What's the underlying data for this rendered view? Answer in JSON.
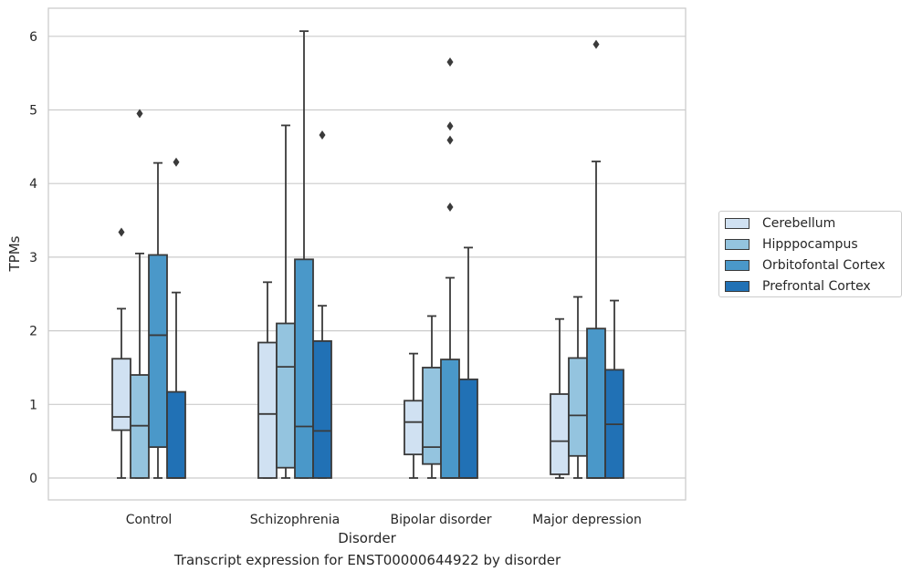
{
  "chart_data": {
    "type": "box",
    "title": "Transcript expression for ENST00000644922 by disorder",
    "xlabel": "Disorder",
    "ylabel": "TPMs",
    "ylim": [
      -0.3,
      6.4
    ],
    "yticks": [
      0,
      1,
      2,
      3,
      4,
      5,
      6
    ],
    "grid": true,
    "legend_position": "right",
    "categories": [
      "Control",
      "Schizophrenia",
      "Bipolar disorder",
      "Major depression"
    ],
    "series": [
      {
        "name": "Cerebellum",
        "color": "#d0e1f2",
        "boxes": [
          {
            "low": 0.0,
            "q1": 0.65,
            "median": 0.83,
            "q3": 1.62,
            "high": 2.3,
            "outliers": [
              3.34
            ]
          },
          {
            "low": 0.0,
            "q1": 0.0,
            "median": 0.87,
            "q3": 1.84,
            "high": 2.66,
            "outliers": []
          },
          {
            "low": 0.0,
            "q1": 0.32,
            "median": 0.76,
            "q3": 1.05,
            "high": 1.69,
            "outliers": []
          },
          {
            "low": 0.0,
            "q1": 0.05,
            "median": 0.5,
            "q3": 1.14,
            "high": 2.16,
            "outliers": []
          }
        ]
      },
      {
        "name": "Hipppocampus",
        "color": "#94c4df",
        "boxes": [
          {
            "low": 0.0,
            "q1": 0.0,
            "median": 0.71,
            "q3": 1.4,
            "high": 3.05,
            "outliers": [
              4.95
            ]
          },
          {
            "low": 0.0,
            "q1": 0.14,
            "median": 1.51,
            "q3": 2.1,
            "high": 4.79,
            "outliers": []
          },
          {
            "low": 0.0,
            "q1": 0.19,
            "median": 0.42,
            "q3": 1.5,
            "high": 2.2,
            "outliers": []
          },
          {
            "low": 0.0,
            "q1": 0.3,
            "median": 0.85,
            "q3": 1.63,
            "high": 2.46,
            "outliers": []
          }
        ]
      },
      {
        "name": "Orbitofontal Cortex",
        "color": "#4a98c9",
        "boxes": [
          {
            "low": 0.0,
            "q1": 0.42,
            "median": 1.94,
            "q3": 3.03,
            "high": 4.28,
            "outliers": []
          },
          {
            "low": 0.0,
            "q1": 0.0,
            "median": 0.7,
            "q3": 2.97,
            "high": 6.07,
            "outliers": []
          },
          {
            "low": 0.0,
            "q1": 0.0,
            "median": 0.0,
            "q3": 1.61,
            "high": 2.72,
            "outliers": [
              3.68,
              4.78,
              4.59,
              5.65
            ]
          },
          {
            "low": 0.0,
            "q1": 0.0,
            "median": 0.0,
            "q3": 2.03,
            "high": 4.3,
            "outliers": [
              5.89
            ]
          }
        ]
      },
      {
        "name": "Prefrontal Cortex",
        "color": "#2171b5",
        "boxes": [
          {
            "low": 0.0,
            "q1": 0.0,
            "median": 0.0,
            "q3": 1.17,
            "high": 2.52,
            "outliers": [
              4.29
            ]
          },
          {
            "low": 0.0,
            "q1": 0.0,
            "median": 0.64,
            "q3": 1.86,
            "high": 2.34,
            "outliers": [
              4.66
            ]
          },
          {
            "low": 0.0,
            "q1": 0.0,
            "median": 0.0,
            "q3": 1.34,
            "high": 3.13,
            "outliers": []
          },
          {
            "low": 0.0,
            "q1": 0.0,
            "median": 0.73,
            "q3": 1.47,
            "high": 2.41,
            "outliers": []
          }
        ]
      }
    ]
  }
}
